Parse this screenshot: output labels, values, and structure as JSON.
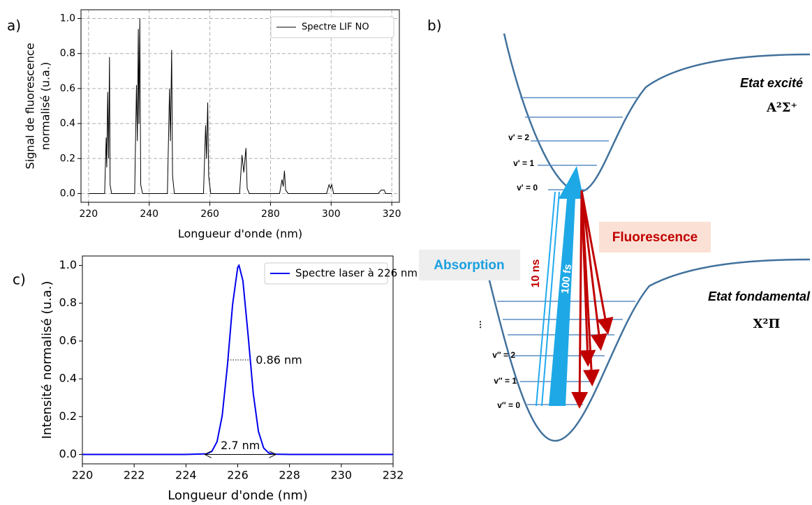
{
  "panels": [
    "a)",
    "b)",
    "c)"
  ],
  "chart_data": [
    {
      "type": "line",
      "xlabel": "Longueur d'onde (nm)",
      "ylabel": [
        "Signal de fluorescence",
        "normalisé (u.a.)"
      ],
      "x": [
        220,
        225.3,
        225.8,
        226.0,
        226.3,
        226.6,
        226.9,
        227.1,
        227.6,
        235.2,
        235.8,
        236.1,
        236.4,
        236.6,
        236.9,
        237.2,
        237.8,
        246.0,
        246.7,
        247.0,
        247.4,
        247.7,
        248.3,
        257.9,
        258.6,
        258.9,
        259.3,
        259.6,
        260.3,
        269.8,
        270.6,
        271.2,
        271.9,
        272.3,
        273,
        283,
        283.8,
        284.2,
        284.6,
        285,
        285.8,
        298.5,
        299.3,
        299.8,
        300.2,
        300.8,
        315.5,
        316.5,
        317.5,
        318,
        320
      ],
      "series": [
        {
          "name": "Spectre LIF NO",
          "color": "#000000",
          "values": [
            0,
            0,
            0.32,
            0.15,
            0.58,
            0.2,
            0.78,
            0.05,
            0,
            0,
            0.62,
            0.3,
            0.94,
            0.4,
            1.0,
            0.05,
            0,
            0,
            0.6,
            0.3,
            0.82,
            0.1,
            0,
            0,
            0.39,
            0.2,
            0.52,
            0.1,
            0,
            0,
            0.22,
            0.12,
            0.26,
            0.03,
            0,
            0,
            0.08,
            0.04,
            0.13,
            0.02,
            0,
            0,
            0.05,
            0.03,
            0.05,
            0,
            0,
            0.02,
            0.02,
            0,
            0
          ]
        }
      ],
      "xlim": [
        217.5,
        322.5
      ],
      "xticks": [
        220,
        240,
        260,
        280,
        300,
        320
      ],
      "ylim": [
        -0.05,
        1.05
      ],
      "yticks": [
        {
          "value": 0,
          "label": "0.0"
        },
        0.2,
        0.4,
        0.6,
        0.8,
        {
          "value": 1,
          "label": "1.0"
        }
      ],
      "grid": true,
      "legend": "upper right"
    },
    {
      "type": "line",
      "xlabel": "Longueur d'onde (nm)",
      "ylabel": [
        "Intensité normalisé (u.a.)"
      ],
      "x": [
        220,
        224,
        224.8,
        225.0,
        225.2,
        225.4,
        225.6,
        225.8,
        226.0,
        226.05,
        226.2,
        226.4,
        226.6,
        226.8,
        227.0,
        227.2,
        227.4,
        228,
        232
      ],
      "series": [
        {
          "name": "Spectre laser à 226 nm",
          "color": "#0000ee",
          "values": [
            0,
            0,
            0.003,
            0.016,
            0.067,
            0.205,
            0.468,
            0.791,
            0.991,
            1.0,
            0.919,
            0.632,
            0.322,
            0.121,
            0.034,
            0.007,
            0.001,
            0,
            0
          ]
        }
      ],
      "xlim": [
        220,
        232
      ],
      "xticks": [
        220,
        222,
        224,
        226,
        228,
        230,
        232
      ],
      "ylim": [
        -0.05,
        1.05
      ],
      "yticks": [
        {
          "value": 0,
          "label": "0.0"
        },
        0.2,
        0.4,
        0.6,
        0.8,
        {
          "value": 1,
          "label": "1.0"
        }
      ],
      "grid": false,
      "legend": "upper right",
      "annotations": [
        {
          "text": "0.86 nm",
          "x": [
            225.62,
            226.48
          ],
          "y": 0.5,
          "style": "dotted"
        },
        {
          "text": "2.7 nm",
          "x": [
            224.75,
            227.45
          ],
          "y": 0,
          "style": "arrows"
        }
      ]
    }
  ],
  "diagram": {
    "upper_state": {
      "name": "Etat excité",
      "term": "A²Σ⁺",
      "levels": [
        "v' = 2",
        "v' = 1",
        "v' = 0"
      ]
    },
    "lower_state": {
      "name": "Etat fondamental",
      "term": "X²Π",
      "dots": "⋮",
      "levels": [
        "v″ = 2",
        "v″ = 1",
        "v″ = 0"
      ]
    },
    "absorption": "Absorption",
    "fluorescence": "Fluorescence",
    "lifetime": "10 ns",
    "pulse": "100 fs"
  }
}
